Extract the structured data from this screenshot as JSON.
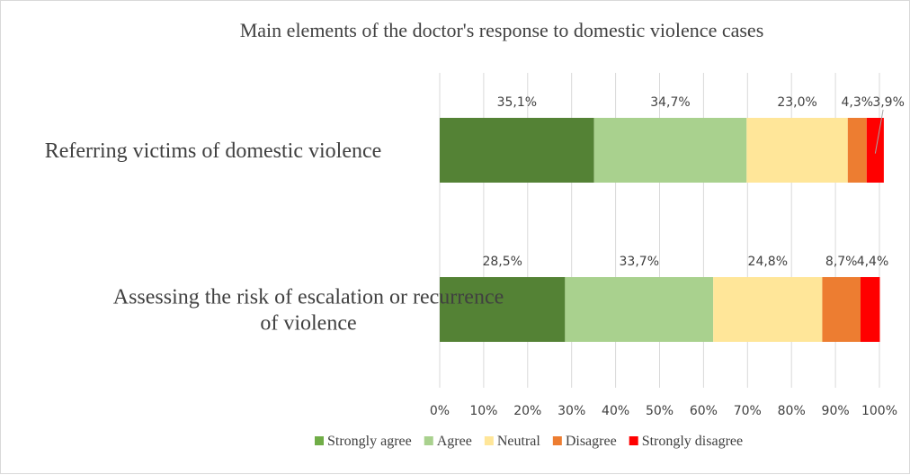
{
  "chart_data": {
    "type": "bar",
    "orientation": "horizontal",
    "stacked": true,
    "percent_stacked": true,
    "title": "Main elements of the doctor's response to domestic violence cases",
    "categories": [
      "Referring victims of domestic violence",
      "Assessing the risk of escalation or recurrence of violence"
    ],
    "category_label_lines": [
      [
        "Referring victims of domestic violence"
      ],
      [
        "Assessing the risk of escalation or recurrence",
        "of violence"
      ]
    ],
    "series": [
      {
        "name": "Strongly agree",
        "color": "#548235",
        "legend_color": "#70ad47",
        "values": [
          35.1,
          28.5
        ],
        "labels": [
          "35,1%",
          "28,5%"
        ]
      },
      {
        "name": "Agree",
        "color": "#a9d18e",
        "legend_color": "#a9d18e",
        "values": [
          34.7,
          33.7
        ],
        "labels": [
          "34,7%",
          "33,7%"
        ]
      },
      {
        "name": "Neutral",
        "color": "#ffe699",
        "legend_color": "#ffe699",
        "values": [
          23.0,
          24.8
        ],
        "labels": [
          "23,0%",
          "24,8%"
        ]
      },
      {
        "name": "Disagree",
        "color": "#ed7d31",
        "legend_color": "#ed7d31",
        "values": [
          4.3,
          8.7
        ],
        "labels": [
          "4,3%",
          "8,7%"
        ]
      },
      {
        "name": "Strongly disagree",
        "color": "#ff0000",
        "legend_color": "#ff0000",
        "values": [
          3.9,
          4.4
        ],
        "labels": [
          "3,9%",
          "4,4%"
        ]
      }
    ],
    "xlim": [
      0,
      100
    ],
    "xticks": [
      "0%",
      "10%",
      "20%",
      "30%",
      "40%",
      "50%",
      "60%",
      "70%",
      "80%",
      "90%",
      "100%"
    ],
    "grid": true,
    "legend": "bottom"
  }
}
